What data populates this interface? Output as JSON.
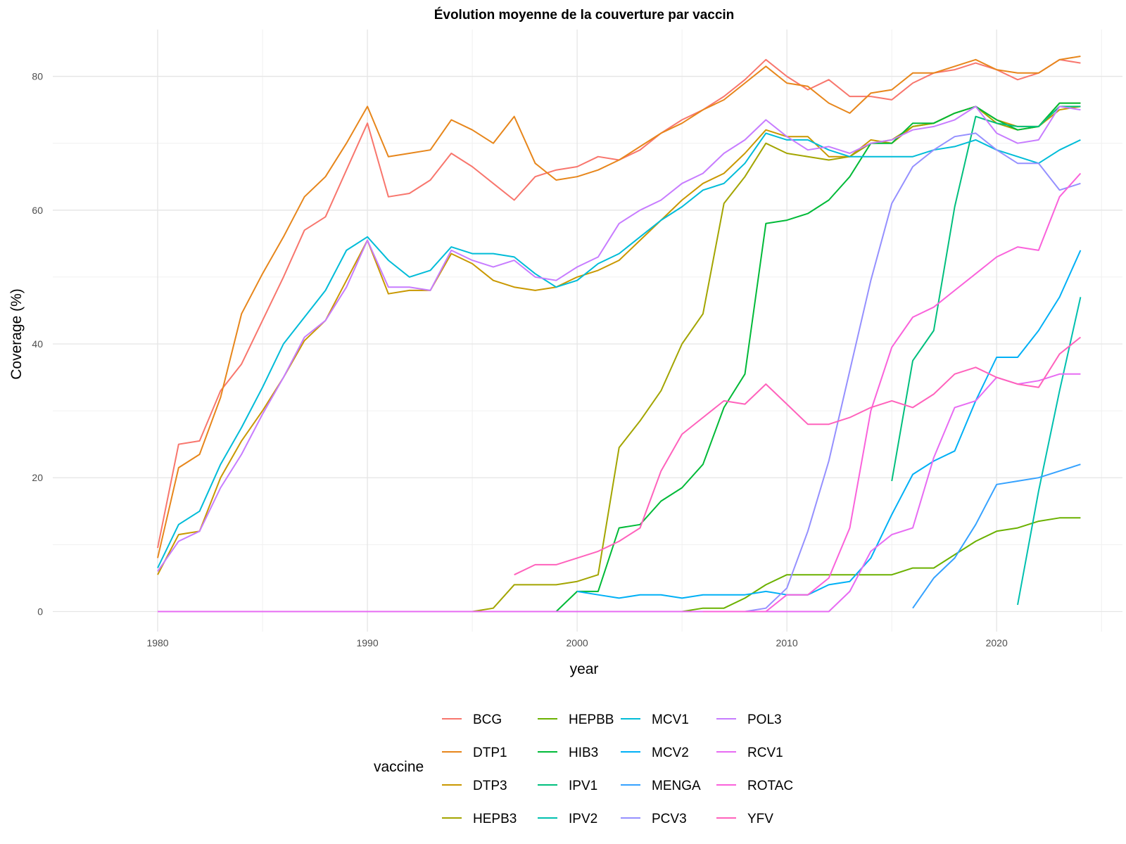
{
  "chart_data": {
    "type": "line",
    "title": "Évolution moyenne de la couverture par vaccin",
    "xlabel": "year",
    "ylabel": "Coverage (%)",
    "xlim": [
      1975,
      2026
    ],
    "ylim": [
      -3,
      87
    ],
    "xticks": [
      1980,
      1990,
      2000,
      2010,
      2020
    ],
    "xtick_labels": [
      "1980",
      "1990",
      "2000",
      "2010",
      "2020"
    ],
    "yticks": [
      0,
      20,
      40,
      60,
      80
    ],
    "ytick_labels": [
      "0",
      "20",
      "40",
      "60",
      "80"
    ],
    "grid": true,
    "legend_title": "vaccine",
    "legend_position": "bottom",
    "series": [
      {
        "name": "BCG",
        "color": "#F8766D",
        "x_start": 1980,
        "values": [
          9.5,
          25,
          25.5,
          33,
          37,
          43.5,
          50,
          57,
          59,
          66,
          73,
          62,
          62.5,
          64.5,
          68.5,
          66.5,
          64,
          61.5,
          65,
          66,
          66.5,
          68,
          67.5,
          69,
          71.5,
          73.5,
          75,
          77,
          79.5,
          82.5,
          80,
          78,
          79.5,
          77,
          77,
          76.5,
          79,
          80.5,
          81,
          82,
          81,
          79.5,
          80.5,
          82.5,
          82
        ]
      },
      {
        "name": "DTP1",
        "color": "#E7861B",
        "x_start": 1980,
        "values": [
          8,
          21.5,
          23.5,
          32,
          44.5,
          50.5,
          56,
          62,
          65,
          70,
          75.5,
          68,
          68.5,
          69,
          73.5,
          72,
          70,
          74,
          67,
          64.5,
          65,
          66,
          67.5,
          69.5,
          71.5,
          73,
          75,
          76.5,
          79,
          81.5,
          79,
          78.5,
          76,
          74.5,
          77.5,
          78,
          80.5,
          80.5,
          81.5,
          82.5,
          81,
          80.5,
          80.5,
          82.5,
          83
        ]
      },
      {
        "name": "DTP3",
        "color": "#C99800",
        "x_start": 1980,
        "values": [
          5.5,
          11.5,
          12,
          20,
          25.5,
          30,
          35,
          40.5,
          43.5,
          49.5,
          55.5,
          47.5,
          48,
          48,
          53.5,
          52,
          49.5,
          48.5,
          48,
          48.5,
          50,
          51,
          52.5,
          55.5,
          58.5,
          61.5,
          64,
          65.5,
          68.5,
          72,
          71,
          71,
          68,
          68,
          70.5,
          70,
          72.5,
          73,
          74.5,
          75.5,
          73.5,
          72.5,
          72.5,
          75,
          75.5
        ]
      },
      {
        "name": "HEPB3",
        "color": "#A3A500",
        "x_start": 1995,
        "values": [
          0,
          0.5,
          4,
          4,
          4,
          4.5,
          5.5,
          24.5,
          28.5,
          33,
          40,
          44.5,
          61,
          65,
          70,
          68.5,
          68,
          67.5,
          68,
          70,
          70.5,
          72.5,
          73,
          74.5,
          75.5,
          73,
          72,
          72.5,
          76,
          76
        ]
      },
      {
        "name": "HEPBB",
        "color": "#6BB100",
        "x_start": 2005,
        "values": [
          0,
          0.5,
          0.5,
          2,
          4,
          5.5,
          5.5,
          5.5,
          5.5,
          5.5,
          5.5,
          6.5,
          6.5,
          8.5,
          10.5,
          12,
          12.5,
          13.5,
          14,
          14
        ]
      },
      {
        "name": "HIB3",
        "color": "#00BA38",
        "x_start": 1999,
        "values": [
          0,
          3,
          3,
          12.5,
          13,
          16.5,
          18.5,
          22,
          30.5,
          35.5,
          58,
          58.5,
          59.5,
          61.5,
          65,
          70,
          70,
          73,
          73,
          74.5,
          75.5,
          73.5,
          72,
          72.5,
          76,
          76
        ]
      },
      {
        "name": "IPV1",
        "color": "#00BF7D",
        "x_start": 2015,
        "values": [
          19.5,
          37.5,
          42,
          60.5,
          74,
          73,
          72.5,
          72.5,
          75.5,
          75.5
        ]
      },
      {
        "name": "IPV2",
        "color": "#00C0AF",
        "x_start": 2021,
        "values": [
          1,
          18,
          33,
          47
        ]
      },
      {
        "name": "MCV1",
        "color": "#00BCD8",
        "x_start": 1980,
        "values": [
          6.5,
          13,
          15,
          22,
          27.5,
          33.5,
          40,
          44,
          48,
          54,
          56,
          52.5,
          50,
          51,
          54.5,
          53.5,
          53.5,
          53,
          50.5,
          48.5,
          49.5,
          52,
          53.5,
          56,
          58.5,
          60.5,
          63,
          64,
          67,
          71.5,
          70.5,
          70.5,
          69,
          68,
          68,
          68,
          68,
          69,
          69.5,
          70.5,
          69,
          68,
          67,
          69,
          70.5
        ]
      },
      {
        "name": "MCV2",
        "color": "#00B0F6",
        "x_start": 2000,
        "values": [
          3,
          2.5,
          2,
          2.5,
          2.5,
          2,
          2.5,
          2.5,
          2.5,
          3,
          2.5,
          2.5,
          4,
          4.5,
          8,
          14.5,
          20.5,
          22.5,
          24,
          31.5,
          38,
          38,
          42,
          47,
          54
        ]
      },
      {
        "name": "MENGA",
        "color": "#35A2FF",
        "x_start": 2016,
        "values": [
          0.5,
          5,
          8,
          13,
          19,
          19.5,
          20,
          21,
          22
        ]
      },
      {
        "name": "PCV3",
        "color": "#9590FF",
        "x_start": 2008,
        "values": [
          0,
          0.5,
          3.5,
          12,
          22.5,
          36,
          49.5,
          61,
          66.5,
          69,
          71,
          71.5,
          69,
          67,
          67,
          63,
          64
        ]
      },
      {
        "name": "POL3",
        "color": "#C77CFF",
        "x_start": 1980,
        "values": [
          6,
          10.5,
          12,
          18.5,
          23.5,
          29.5,
          35,
          41,
          43.5,
          48.5,
          55.5,
          48.5,
          48.5,
          48,
          54,
          52.5,
          51.5,
          52.5,
          50,
          49.5,
          51.5,
          53,
          58,
          60,
          61.5,
          64,
          65.5,
          68.5,
          70.5,
          73.5,
          71,
          69,
          69.5,
          68.5,
          70,
          70.5,
          72,
          72.5,
          73.5,
          75.5,
          71.5,
          70,
          70.5,
          75.5,
          75
        ]
      },
      {
        "name": "RCV1",
        "color": "#E76BF3",
        "x_start": 1980,
        "values": [
          0,
          0,
          0,
          0,
          0,
          0,
          0,
          0,
          0,
          0,
          0,
          0,
          0,
          0,
          0,
          0,
          0,
          0,
          0,
          0,
          0,
          0,
          0,
          0,
          0,
          0,
          0,
          0,
          0,
          0,
          0,
          0,
          0,
          3,
          9,
          11.5,
          12.5,
          23,
          30.5,
          31.5,
          35,
          34,
          34.5,
          35.5,
          35.5
        ]
      },
      {
        "name": "ROTAC",
        "color": "#FA62DB",
        "x_start": 2006,
        "values": [
          0,
          0,
          0,
          0,
          2.5,
          2.5,
          5,
          12.5,
          30,
          39.5,
          44,
          45.5,
          48,
          50.5,
          53,
          54.5,
          54,
          62,
          65.5
        ]
      },
      {
        "name": "YFV",
        "color": "#FF62BC",
        "x_start": 1997,
        "values": [
          5.5,
          7,
          7,
          8,
          9,
          10.5,
          12.5,
          21,
          26.5,
          29,
          31.5,
          31,
          34,
          31,
          28,
          28,
          29,
          30.5,
          31.5,
          30.5,
          32.5,
          35.5,
          36.5,
          35,
          34,
          33.5,
          38.5,
          41
        ]
      }
    ]
  }
}
